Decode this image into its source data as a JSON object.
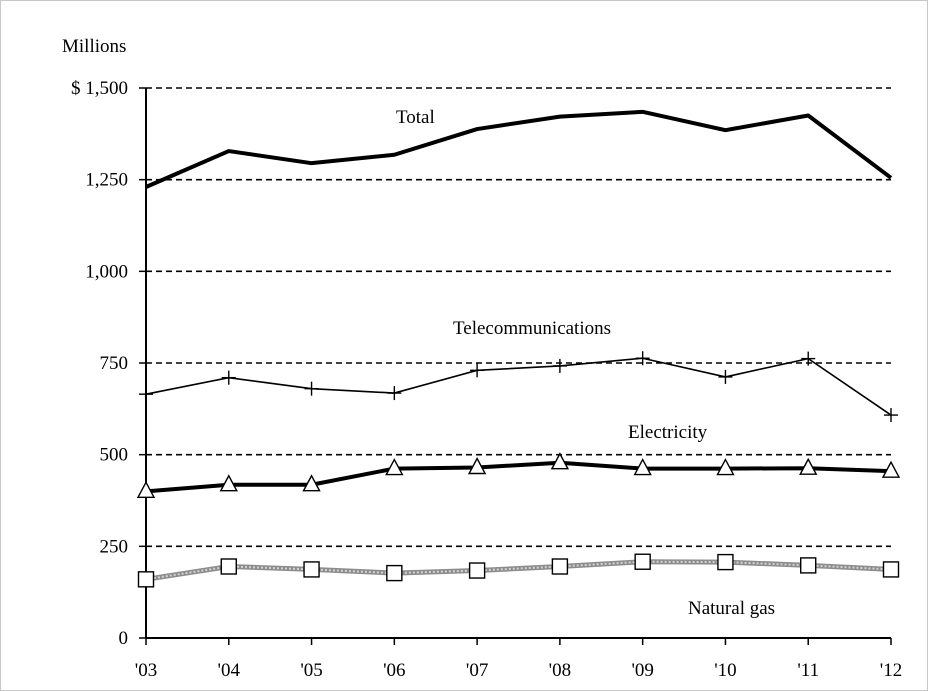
{
  "chart_data": {
    "type": "line",
    "title": "",
    "xlabel": "",
    "ylabel": "Millions",
    "y_unit_label": "Millions",
    "ylim": [
      0,
      1500
    ],
    "y_ticks": [
      0,
      250,
      500,
      750,
      1000,
      1250,
      1500
    ],
    "y_tick_labels": [
      "0",
      "250",
      "500",
      "750",
      "1,000",
      "1,250",
      "$ 1,500"
    ],
    "grid": "dashed horizontal",
    "categories": [
      "'03",
      "'04",
      "'05",
      "'06",
      "'07",
      "'08",
      "'09",
      "'10",
      "'11",
      "'12"
    ],
    "series": [
      {
        "name": "Total",
        "marker": "none",
        "color": "#000000",
        "values": [
          1230,
          1328,
          1295,
          1318,
          1388,
          1422,
          1435,
          1385,
          1425,
          1255
        ]
      },
      {
        "name": "Telecommunications",
        "marker": "plus",
        "color": "#000000",
        "values": [
          665,
          710,
          680,
          668,
          730,
          742,
          763,
          712,
          762,
          608
        ]
      },
      {
        "name": "Electricity",
        "marker": "triangle",
        "color": "#000000",
        "values": [
          400,
          418,
          418,
          462,
          465,
          478,
          462,
          462,
          463,
          455
        ]
      },
      {
        "name": "Natural gas",
        "marker": "square",
        "color": "#8c8c8c",
        "values": [
          160,
          195,
          187,
          177,
          184,
          195,
          208,
          207,
          198,
          187
        ]
      }
    ]
  }
}
